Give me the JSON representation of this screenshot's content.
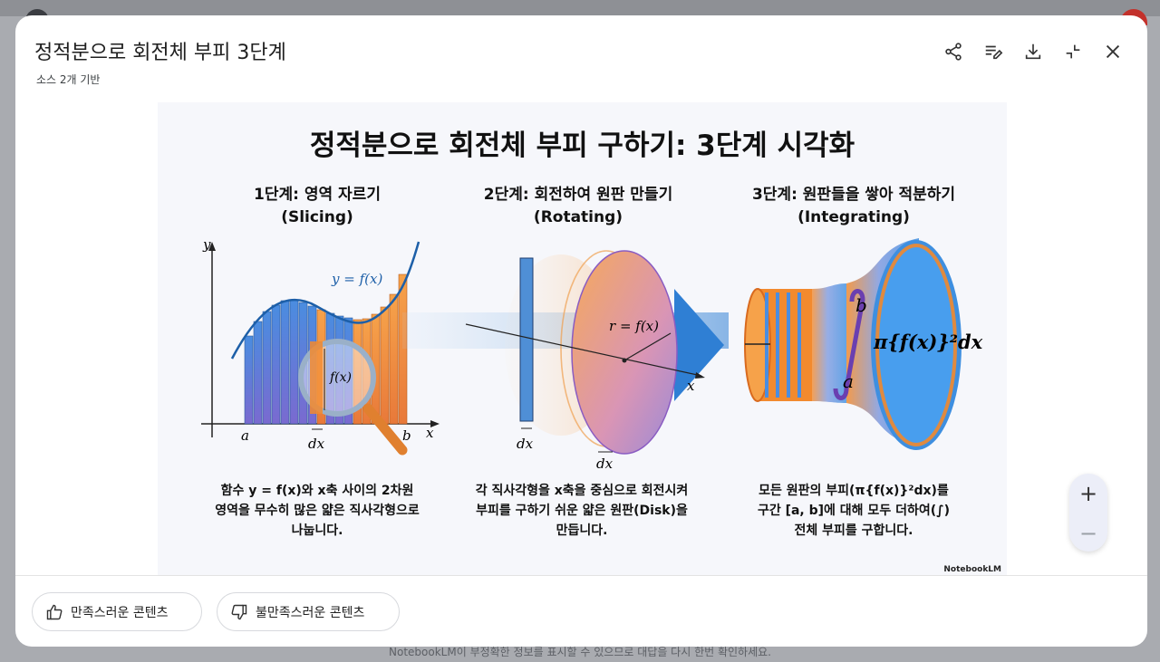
{
  "background": {
    "footer_notice": "NotebookLM이 부정확한 정보를 표시할 수 있으므로 대답을 다시 한번 확인하세요."
  },
  "header": {
    "title": "정적분으로 회전체 부피 3단계",
    "subtitle": "소스 2개 기반",
    "actions": [
      {
        "name": "share",
        "icon": "share-icon"
      },
      {
        "name": "edit-notes",
        "icon": "playlist-edit-icon"
      },
      {
        "name": "download",
        "icon": "download-icon"
      },
      {
        "name": "collapse",
        "icon": "collapse-icon"
      },
      {
        "name": "close",
        "icon": "close-icon"
      }
    ]
  },
  "infographic": {
    "title": "정적분으로 회전체 부피 구하기: 3단계 시각화",
    "steps": [
      {
        "heading": "1단계: 영역 자르기",
        "sub": "(Slicing)"
      },
      {
        "heading": "2단계: 회전하여 원판 만들기",
        "sub": "(Rotating)"
      },
      {
        "heading": "3단계: 원판들을 쌓아 적분하기",
        "sub": "(Integrating)"
      }
    ],
    "labels": {
      "y_axis": "y",
      "x_axis": "x",
      "curve": "y = f(x)",
      "fx": "f(x)",
      "a": "a",
      "b": "b",
      "dx": "dx",
      "radius": "r = f(x)",
      "integral_upper": "b",
      "integral_lower": "a",
      "integrand": "π{f(x)}²dx"
    },
    "descriptions": [
      {
        "line1": "함수 y = f(x)와 x축 사이의 2차원",
        "line2": "영역을 무수히 많은 얇은 직사각형으로",
        "line3": "나눕니다."
      },
      {
        "line1": "각 직사각형을 x축을 중심으로 회전시켜",
        "line2": "부피를 구하기 쉬운 얇은 원판(Disk)을",
        "line3": "만듭니다."
      },
      {
        "line1": "모든 원판의 부피(π{f(x)}²dx)를",
        "line2": "구간 [a, b]에 대해 모두 더하여(∫)",
        "line3": "전체 부피를 구합니다."
      }
    ],
    "brand": "NotebookLM",
    "colors": {
      "blue": "#3a7fd6",
      "orange": "#f28a2e",
      "purple": "#8a5cc2"
    }
  },
  "zoom": {
    "plus": "+",
    "minus": "−"
  },
  "feedback": {
    "like_label": "만족스러운 콘텐츠",
    "dislike_label": "불만족스러운 콘텐츠"
  }
}
